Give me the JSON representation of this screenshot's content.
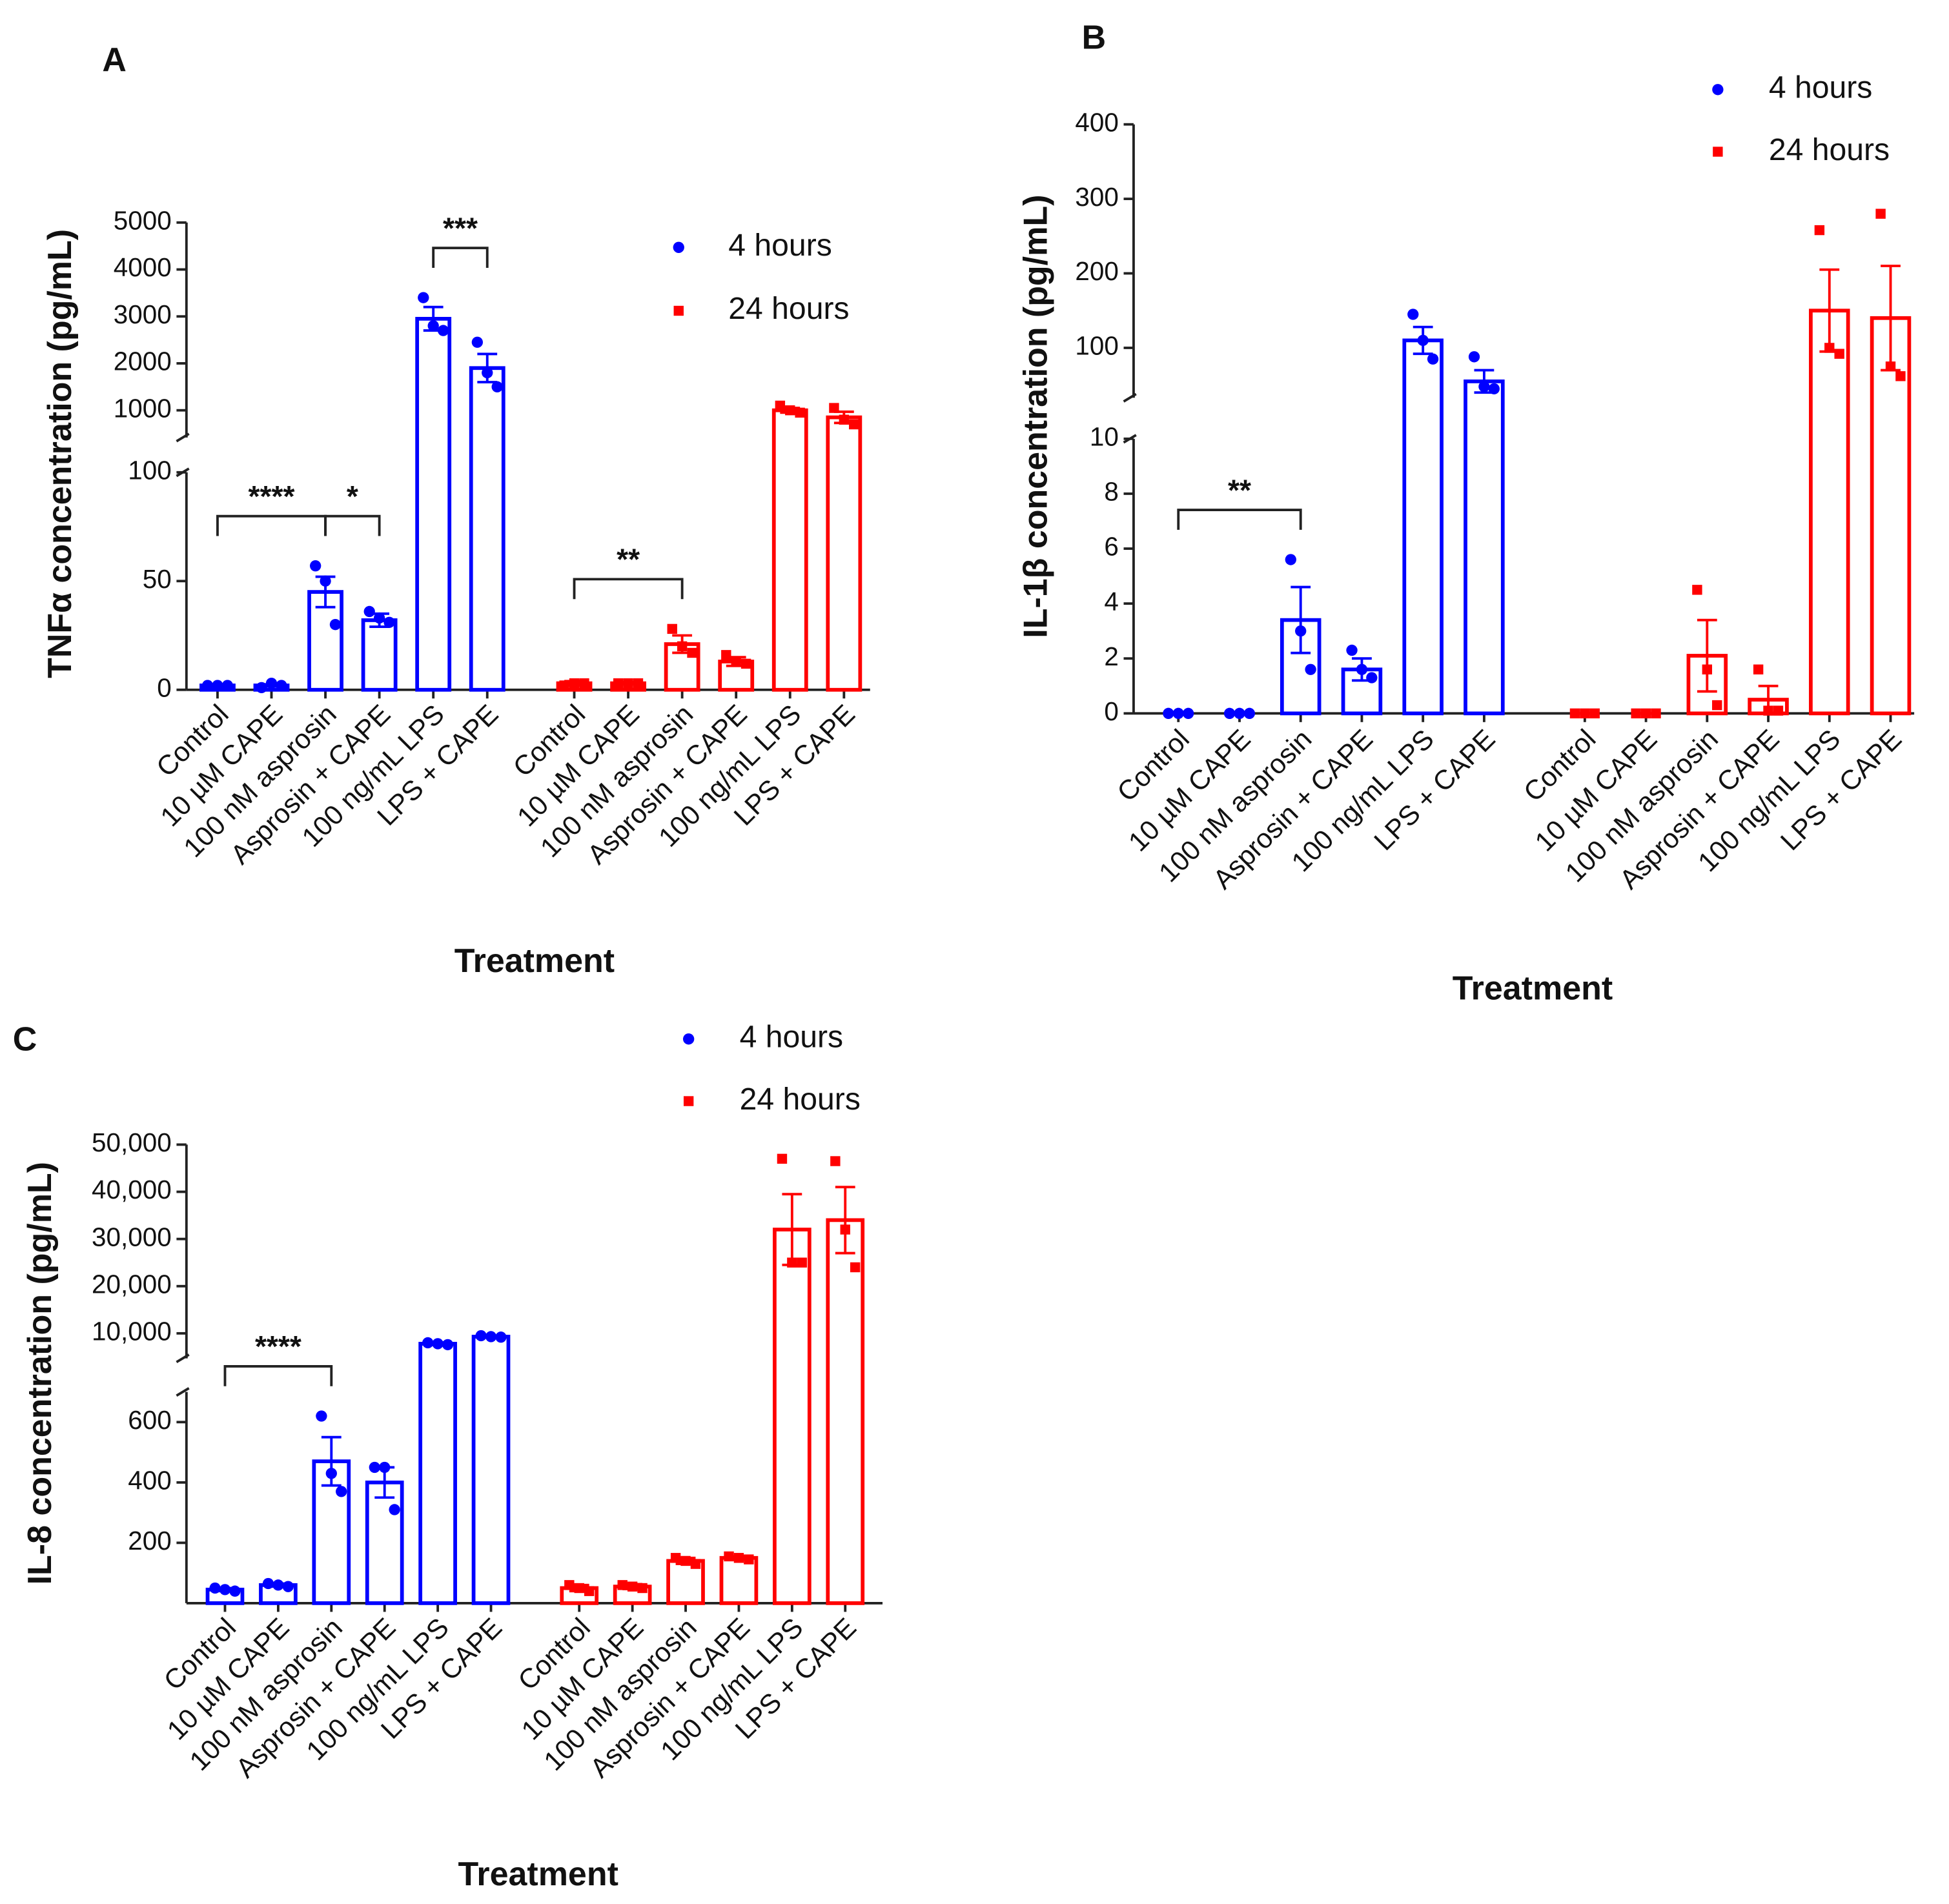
{
  "chart_data": [
    {
      "type": "bar",
      "title": "A",
      "ylabel": "TNFα concentration (pg/mL)",
      "xlabel": "Treatment",
      "legend": "upper right",
      "categories": [
        "Control",
        "10 µM CAPE",
        "100 nM asprosin",
        "Asprosin + CAPE",
        "100 ng/mL LPS",
        "LPS + CAPE"
      ],
      "segments": [
        {
          "ylim": [
            0,
            100
          ],
          "yticks": [
            0,
            50,
            100
          ]
        },
        {
          "ylim": [
            420,
            5000
          ],
          "yticks": [
            1000,
            2000,
            3000,
            4000,
            5000
          ]
        }
      ],
      "series": [
        {
          "name": "4 hours",
          "color": "#0000ff",
          "marker": "circle",
          "values": [
            2,
            2,
            45,
            32,
            2950,
            1900
          ],
          "errors": [
            0.5,
            0.5,
            7,
            3,
            250,
            300
          ],
          "points": [
            [
              2,
              2,
              2
            ],
            [
              1,
              3,
              2
            ],
            [
              57,
              50,
              30
            ],
            [
              36,
              33,
              31
            ],
            [
              3400,
              2800,
              2700
            ],
            [
              2450,
              1800,
              1500
            ]
          ]
        },
        {
          "name": "24 hours",
          "color": "#ff0000",
          "marker": "square",
          "values": [
            3,
            3,
            21,
            13,
            1000,
            850
          ],
          "errors": [
            1,
            0.5,
            4,
            2,
            50,
            120
          ],
          "points": [
            [
              2,
              3,
              3
            ],
            [
              3,
              3,
              3
            ],
            [
              28,
              20,
              17
            ],
            [
              16,
              13,
              12
            ],
            [
              1100,
              1000,
              950
            ],
            [
              1050,
              800,
              700
            ]
          ]
        }
      ],
      "annotations": [
        {
          "text": "****",
          "from": 0,
          "to": 2
        },
        {
          "text": "*",
          "from": 2,
          "to": 3
        },
        {
          "text": "***",
          "from": 4,
          "to": 5
        },
        {
          "text": "**",
          "from": 6,
          "to": 8
        }
      ]
    },
    {
      "type": "bar",
      "title": "B",
      "ylabel": "IL-1β concentration (pg/mL)",
      "xlabel": "Treatment",
      "legend": "upper right",
      "categories": [
        "Control",
        "10 µM CAPE",
        "100 nM asprosin",
        "Asprosin + CAPE",
        "100 ng/mL LPS",
        "LPS + CAPE"
      ],
      "segments": [
        {
          "ylim": [
            0,
            10
          ],
          "yticks": [
            0,
            2,
            4,
            6,
            8,
            10
          ]
        },
        {
          "ylim": [
            33,
            400
          ],
          "yticks": [
            100,
            200,
            300,
            400
          ]
        }
      ],
      "series": [
        {
          "name": "4 hours",
          "color": "#0000ff",
          "marker": "circle",
          "values": [
            0,
            0,
            3.4,
            1.6,
            110,
            55
          ],
          "errors": [
            0,
            0,
            1.2,
            0.4,
            18,
            15
          ],
          "points": [
            [
              0,
              0,
              0
            ],
            [
              0,
              0,
              0
            ],
            [
              5.6,
              3.0,
              1.6
            ],
            [
              2.3,
              1.6,
              1.3
            ],
            [
              145,
              110,
              85
            ],
            [
              88,
              48,
              45
            ]
          ]
        },
        {
          "name": "24 hours",
          "color": "#ff0000",
          "marker": "square",
          "values": [
            0,
            0,
            2.1,
            0.5,
            150,
            140
          ],
          "errors": [
            0,
            0,
            1.3,
            0.5,
            55,
            70
          ],
          "points": [
            [
              0,
              0,
              0
            ],
            [
              0,
              0,
              0
            ],
            [
              4.5,
              1.6,
              0.3
            ],
            [
              1.6,
              0.1,
              0.1
            ],
            [
              258,
              100,
              92
            ],
            [
              280,
              75,
              62
            ]
          ]
        }
      ],
      "annotations": [
        {
          "text": "**",
          "from": 0,
          "to": 2
        }
      ]
    },
    {
      "type": "bar",
      "title": "C",
      "ylabel": "IL-8 concentration (pg/mL)",
      "xlabel": "Treatment",
      "legend": "upper right",
      "categories": [
        "Control",
        "10 µM CAPE",
        "100 nM asprosin",
        "Asprosin + CAPE",
        "100 ng/mL LPS",
        "LPS + CAPE"
      ],
      "segments": [
        {
          "ylim": [
            0,
            700
          ],
          "yticks": [
            200,
            400,
            600
          ]
        },
        {
          "ylim": [
            4700,
            50000
          ],
          "yticks": [
            {
              "value": 10000,
              "label": "10,000"
            },
            {
              "value": 20000,
              "label": "20,000"
            },
            {
              "value": 30000,
              "label": "30,000"
            },
            {
              "value": 40000,
              "label": "40,000"
            },
            {
              "value": 50000,
              "label": "50,000"
            }
          ]
        }
      ],
      "series": [
        {
          "name": "4 hours",
          "color": "#0000ff",
          "marker": "circle",
          "values": [
            45,
            60,
            470,
            400,
            7800,
            9300
          ],
          "errors": [
            5,
            5,
            80,
            50,
            300,
            200
          ],
          "points": [
            [
              50,
              45,
              40
            ],
            [
              65,
              60,
              55
            ],
            [
              620,
              430,
              370
            ],
            [
              450,
              450,
              310
            ],
            [
              8000,
              7800,
              7600
            ],
            [
              9500,
              9300,
              9200
            ]
          ]
        },
        {
          "name": "24 hours",
          "color": "#ff0000",
          "marker": "square",
          "values": [
            50,
            55,
            140,
            150,
            32000,
            34000
          ],
          "errors": [
            10,
            8,
            10,
            5,
            7500,
            7000
          ],
          "points": [
            [
              60,
              50,
              40
            ],
            [
              60,
              55,
              50
            ],
            [
              150,
              140,
              130
            ],
            [
              155,
              150,
              145
            ],
            [
              47000,
              25000,
              25000
            ],
            [
              46500,
              32000,
              24000
            ]
          ]
        }
      ],
      "annotations": [
        {
          "text": "****",
          "from": 0,
          "to": 2
        }
      ]
    }
  ]
}
